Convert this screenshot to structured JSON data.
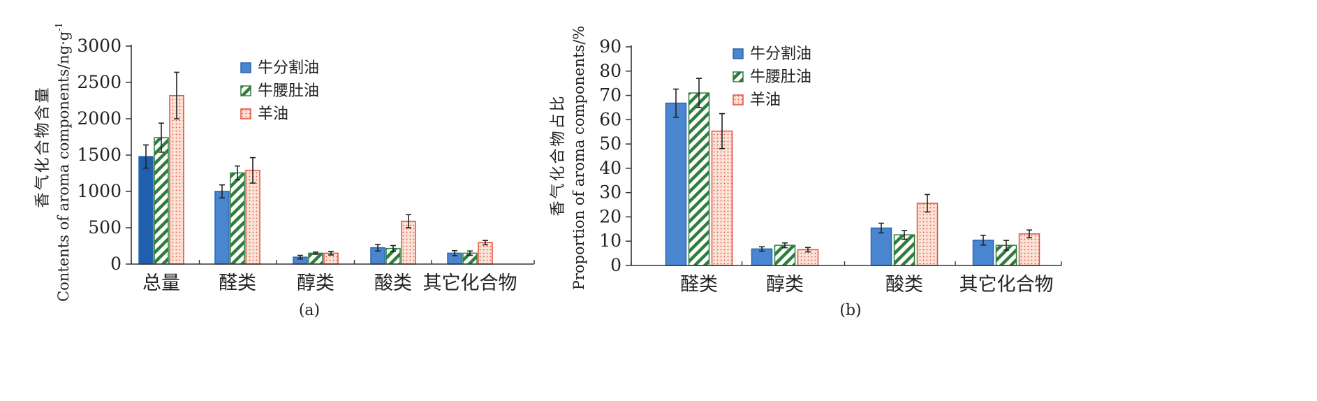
{
  "colors": {
    "series_fill": [
      "#4a86d0",
      "#ffffff",
      "#fbe2d6"
    ],
    "series_stroke": [
      "#2c65ad",
      "#2e7d3c",
      "#e2503c"
    ],
    "hatch": "#2e7d3c",
    "dots": "#e2503c",
    "first_bar_override": "#1f5fae",
    "axis": "#333333",
    "errorbar": "#222222"
  },
  "chart_data": [
    {
      "type": "bar",
      "panel_label": "(a)",
      "ylabel_cn": "香气化合物含量",
      "ylabel_en": "Contents of aroma components/ng·g",
      "ylabel_sup": "-1",
      "ylim": [
        0,
        3000
      ],
      "yticks": [
        "0",
        "500",
        "1000",
        "1500",
        "2000",
        "2500",
        "3000"
      ],
      "categories": [
        "总量",
        "醛类",
        "醇类",
        "酸类",
        "其它化合物"
      ],
      "legend_position": "top-center",
      "series": [
        {
          "name": "牛分割油",
          "values": [
            1480,
            1000,
            95,
            225,
            150
          ],
          "errors": [
            160,
            90,
            25,
            45,
            35
          ]
        },
        {
          "name": "牛腰肚油",
          "values": [
            1740,
            1255,
            150,
            215,
            150
          ],
          "errors": [
            200,
            95,
            15,
            40,
            30
          ]
        },
        {
          "name": "羊油",
          "values": [
            2320,
            1290,
            150,
            590,
            295
          ],
          "errors": [
            320,
            175,
            25,
            90,
            30
          ]
        }
      ]
    },
    {
      "type": "bar",
      "panel_label": "(b)",
      "ylabel_cn": "香气化合物占比",
      "ylabel_en": "Proportion of aroma components/%",
      "ylim": [
        0,
        90
      ],
      "yticks": [
        "0",
        "10",
        "20",
        "30",
        "40",
        "50",
        "60",
        "70",
        "80",
        "90"
      ],
      "categories": [
        "醛类",
        "醇类",
        "酸类",
        "其它化合物"
      ],
      "legend_position": "top-center",
      "series": [
        {
          "name": "牛分割油",
          "values": [
            66.8,
            6.8,
            15.4,
            10.4
          ],
          "errors": [
            5.8,
            0.9,
            2.0,
            2.0
          ]
        },
        {
          "name": "牛腰肚油",
          "values": [
            71.0,
            8.3,
            12.6,
            8.3
          ],
          "errors": [
            6.0,
            1.0,
            1.8,
            2.0
          ]
        },
        {
          "name": "羊油",
          "values": [
            55.3,
            6.5,
            25.6,
            13.0
          ],
          "errors": [
            7.2,
            0.9,
            3.6,
            1.6
          ]
        }
      ]
    }
  ]
}
